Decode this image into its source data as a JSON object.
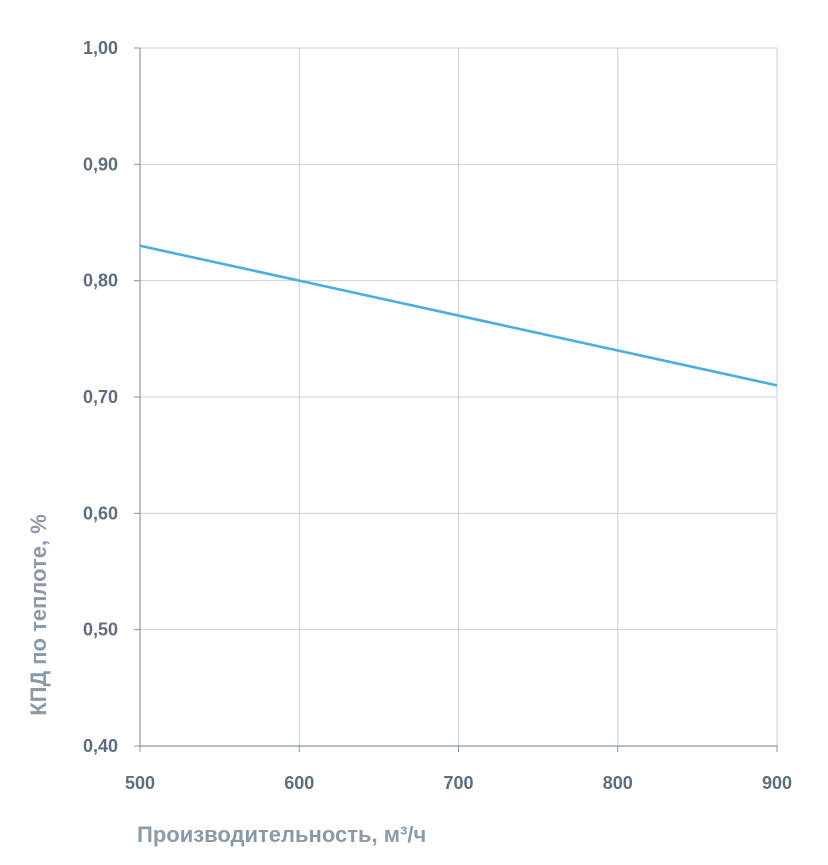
{
  "chart_data": {
    "type": "line",
    "title": "",
    "xlabel": "Производительность, м³/ч",
    "ylabel": "КПД по теплоте, %",
    "xlim": [
      500,
      900
    ],
    "ylim": [
      0.4,
      1.0
    ],
    "x_ticks": [
      "500",
      "600",
      "700",
      "800",
      "900"
    ],
    "y_ticks": [
      "0,40",
      "0,50",
      "0,60",
      "0,70",
      "0,80",
      "0,90",
      "1,00"
    ],
    "grid": true,
    "legend": "none",
    "series": [
      {
        "x": [
          500,
          600,
          700,
          800,
          900
        ],
        "values": [
          0.83,
          0.8,
          0.77,
          0.74,
          0.71
        ],
        "color": "#4aaee0"
      }
    ],
    "colors": {
      "line": "#4aaee0",
      "grid": "#c8d2da",
      "axis": "#8896a3",
      "tick_text": "#5d6e7e",
      "title_text": "#8a9aa8"
    }
  }
}
